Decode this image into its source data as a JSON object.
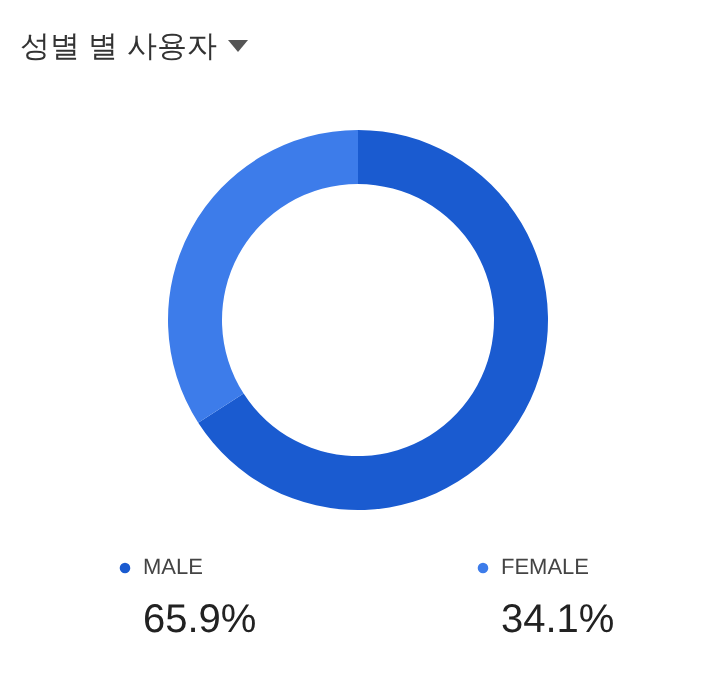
{
  "chart_data": {
    "type": "donut",
    "title": "성별 별 사용자",
    "categories": [
      "MALE",
      "FEMALE"
    ],
    "values": [
      65.9,
      34.1
    ],
    "value_labels": [
      "65.9%",
      "34.1%"
    ],
    "colors": [
      "#1a5bd0",
      "#3d7cea"
    ],
    "legend": "bottom"
  }
}
